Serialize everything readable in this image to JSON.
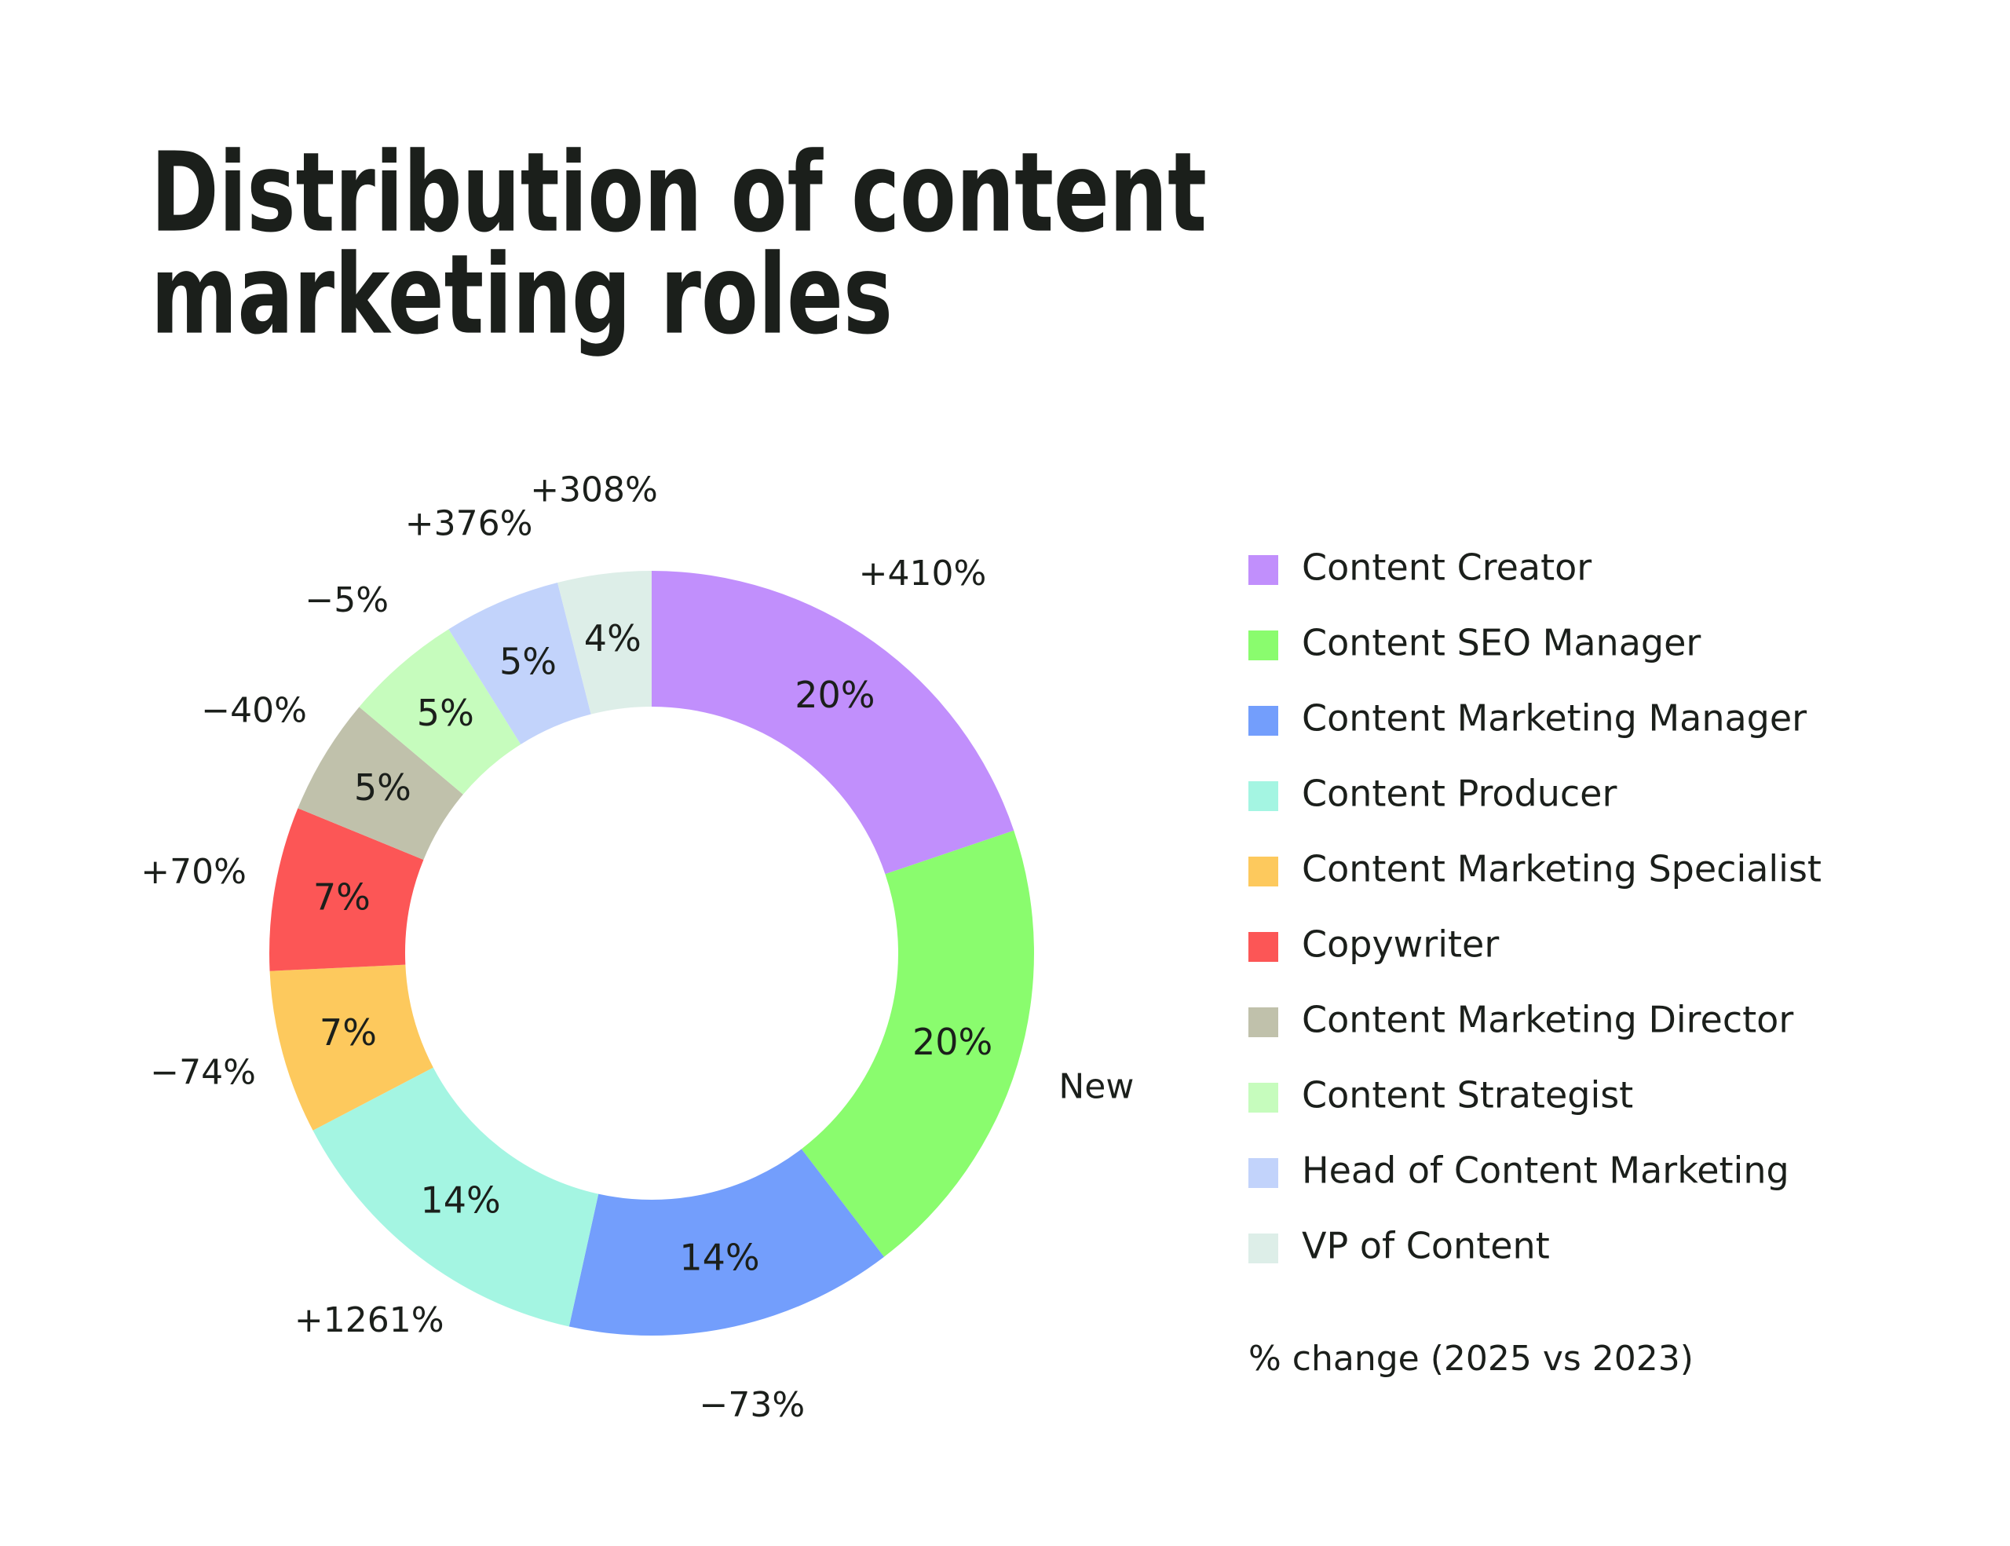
{
  "chart_data": {
    "type": "donut",
    "title_lines": [
      "Distribution of content",
      "marketing roles"
    ],
    "categories": [
      "Content Creator",
      "Content SEO Manager",
      "Content Marketing Manager",
      "Content Producer",
      "Content Marketing Specialist",
      "Copywriter",
      "Content Marketing Director",
      "Content Strategist",
      "Head of Content Marketing",
      "VP of Content"
    ],
    "values": [
      20,
      20,
      14,
      14,
      7,
      7,
      5,
      5,
      5,
      4
    ],
    "value_labels": [
      "20%",
      "20%",
      "14%",
      "14%",
      "7%",
      "7%",
      "5%",
      "5%",
      "5%",
      "4%"
    ],
    "colors": [
      "#c18ffc",
      "#8afc6e",
      "#739efc",
      "#a4f5e2",
      "#fdc95d",
      "#fc5656",
      "#c0c1ab",
      "#c6fcbd",
      "#c2d3fb",
      "#ddeee8"
    ],
    "change_labels": [
      "+410%",
      "New",
      "−73%",
      "+1261%",
      "−74%",
      "+70%",
      "−40%",
      "−5%",
      "+376%",
      "+308%"
    ],
    "legend_note": "% change (2025 vs 2023)"
  }
}
